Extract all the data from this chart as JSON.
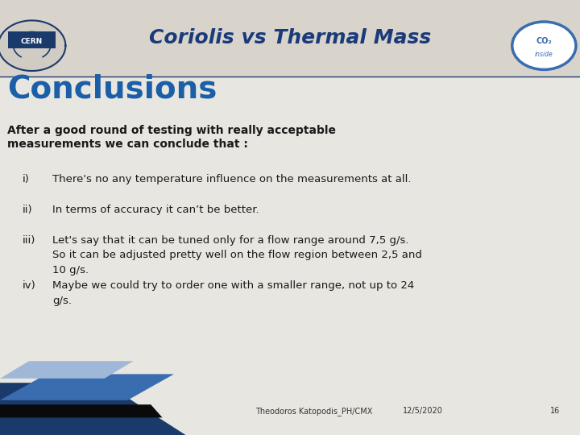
{
  "title": "Coriolis vs Thermal Mass",
  "title_color": "#1a3a7a",
  "slide_title": "Conclusions",
  "slide_title_color": "#1a5fa8",
  "background_color": "#e8e6e0",
  "header_bg_color": "#d8d4cc",
  "footer_left": "Theodoros Katopodis_PH/CMX",
  "footer_date": "12/5/2020",
  "footer_page": "16",
  "intro_text_line1": "After a good round of testing with really acceptable",
  "intro_text_line2": "measurements we can conclude that :",
  "items": [
    {
      "label": "i)",
      "text": "There's no any temperature influence on the measurements at all."
    },
    {
      "label": "ii)",
      "text": "In terms of accuracy it can’t be better."
    },
    {
      "label": "iii)",
      "text": "Let's say that it can be tuned only for a flow range around 7,5 g/s.\n         So it can be adjusted pretty well on the flow region between 2,5 and\n         10 g/s."
    },
    {
      "label": "iv)",
      "text": "Maybe we could try to order one with a smaller range, not up to 24\n        g/s."
    }
  ],
  "dark_blue": "#1a3a6b",
  "mid_blue": "#3a6cb0",
  "light_blue": "#a0b8d8",
  "text_color": "#1a1a1a",
  "footer_text_color": "#333333"
}
